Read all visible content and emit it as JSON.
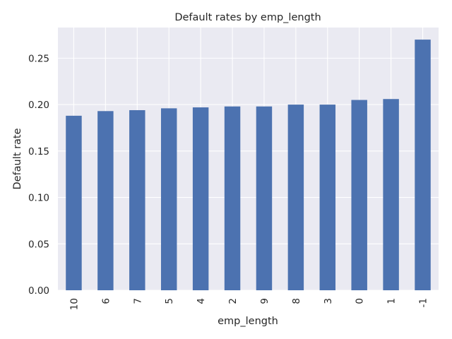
{
  "chart_data": {
    "type": "bar",
    "title": "Default rates by emp_length",
    "xlabel": "emp_length",
    "ylabel": "Default rate",
    "categories": [
      "10",
      "6",
      "7",
      "5",
      "4",
      "2",
      "9",
      "8",
      "3",
      "0",
      "1",
      "-1"
    ],
    "values": [
      0.188,
      0.193,
      0.194,
      0.196,
      0.197,
      0.198,
      0.198,
      0.2,
      0.2,
      0.205,
      0.206,
      0.27
    ],
    "ylim": [
      0,
      0.283
    ],
    "yticks": [
      "0.00",
      "0.05",
      "0.10",
      "0.15",
      "0.20",
      "0.25"
    ],
    "grid": true,
    "colors": {
      "bar": "#4c72b0",
      "background": "#eaeaf2",
      "grid": "#ffffff",
      "text": "#262626"
    }
  }
}
